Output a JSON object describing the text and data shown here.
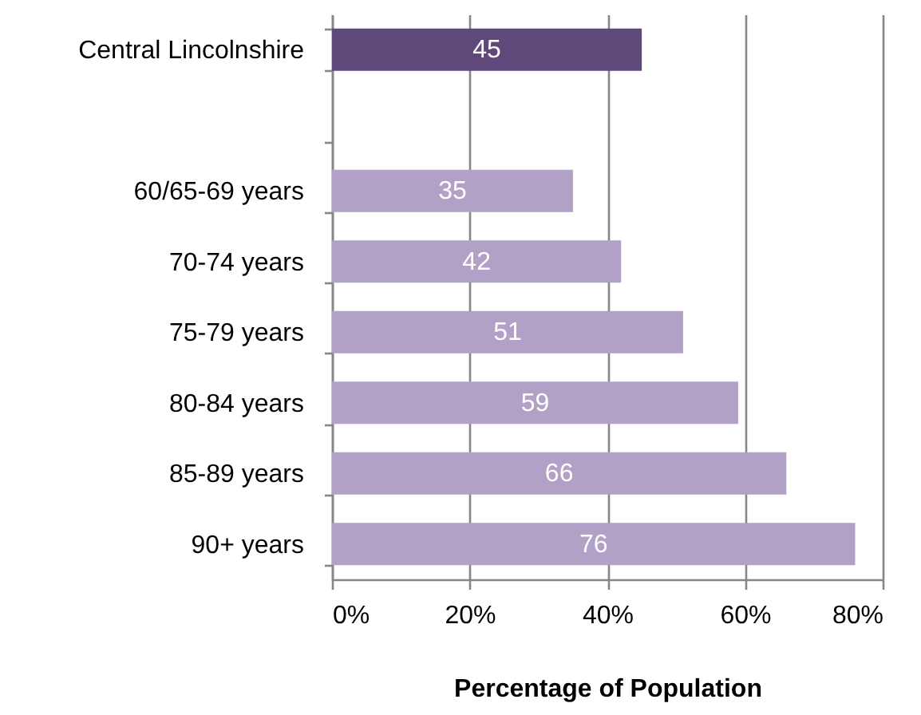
{
  "chart_data": {
    "type": "bar",
    "orientation": "horizontal",
    "xlabel": "Percentage of Population",
    "categories": [
      "Central Lincolnshire",
      null,
      "60/65-69 years",
      "70-74 years",
      "75-79 years",
      "80-84 years",
      "85-89 years",
      "90+ years"
    ],
    "values": [
      45,
      null,
      35,
      42,
      51,
      59,
      66,
      76
    ],
    "colors": [
      "#5f497a",
      null,
      "#b2a1c7",
      "#b2a1c7",
      "#b2a1c7",
      "#b2a1c7",
      "#b2a1c7",
      "#b2a1c7"
    ],
    "xlim": [
      0,
      80
    ],
    "xticks": [
      {
        "value": 0,
        "label": "0%"
      },
      {
        "value": 20,
        "label": "20%"
      },
      {
        "value": 40,
        "label": "40%"
      },
      {
        "value": 60,
        "label": "60%"
      },
      {
        "value": 80,
        "label": "80%"
      }
    ],
    "grid": "x",
    "data_labels": true
  }
}
